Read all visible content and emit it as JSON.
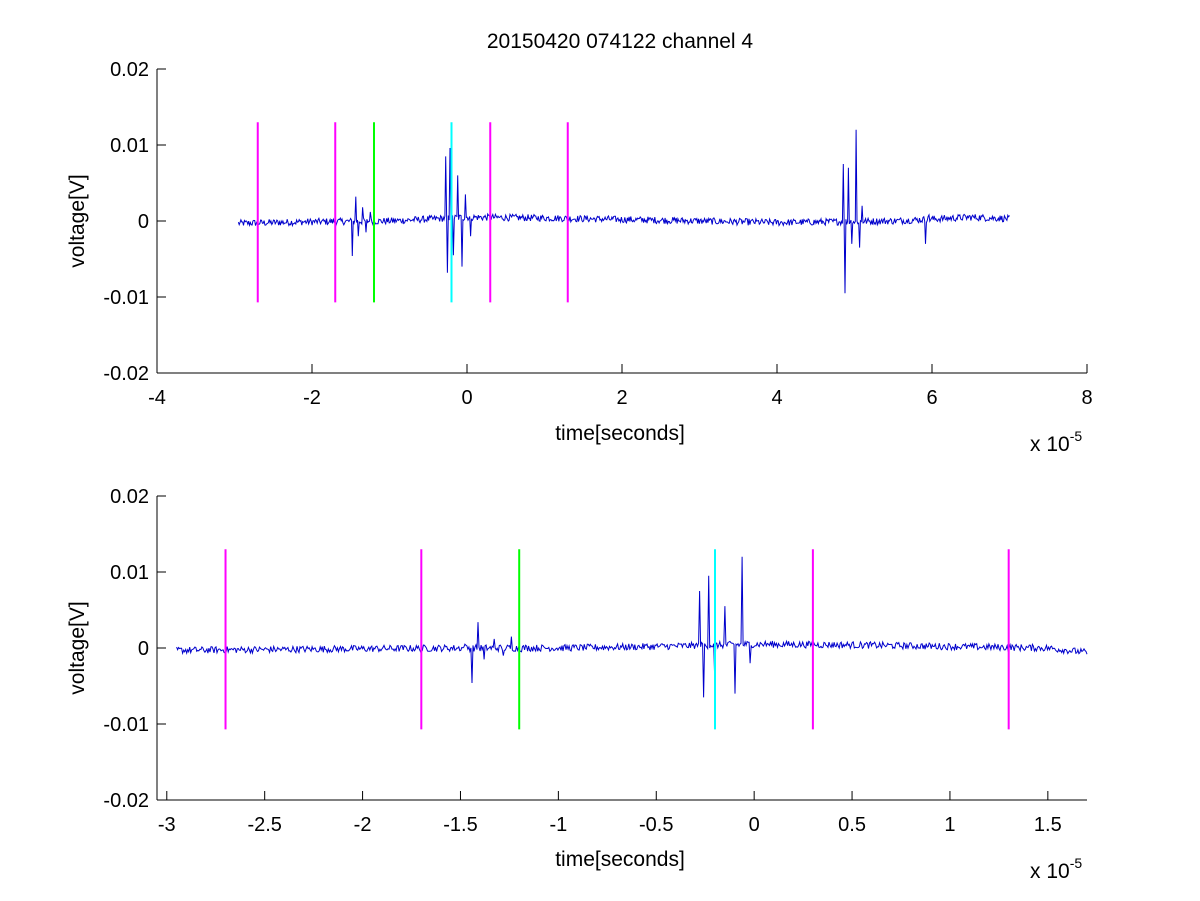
{
  "chart_data": [
    {
      "type": "line",
      "title": "20150420 074122 channel 4",
      "xlabel": "time[seconds]",
      "ylabel": "voltage[V]",
      "x_multiplier_label": "x 10",
      "x_multiplier_exponent": "-5",
      "xlim": [
        -4,
        8
      ],
      "ylim": [
        -0.02,
        0.02
      ],
      "xticks": [
        -4,
        -2,
        0,
        2,
        4,
        6,
        8
      ],
      "xtick_labels": [
        "-4",
        "-2",
        "0",
        "2",
        "4",
        "6",
        "8"
      ],
      "yticks": [
        -0.02,
        -0.01,
        0,
        0.01,
        0.02
      ],
      "ytick_labels": [
        "-0.02",
        "-0.01",
        "0",
        "0.01",
        "0.02"
      ],
      "grid": false,
      "signal": {
        "color": "#0000cc",
        "x_range": [
          -2.95,
          7.0
        ],
        "baseline_points": [
          [
            -2.95,
            -0.0003
          ],
          [
            -2.0,
            -0.0001
          ],
          [
            -1.0,
            0.0
          ],
          [
            0.0,
            0.0005
          ],
          [
            1.0,
            0.0004
          ],
          [
            2.0,
            0.0002
          ],
          [
            3.0,
            0.0
          ],
          [
            4.0,
            -0.0002
          ],
          [
            5.5,
            0.0
          ],
          [
            6.5,
            0.0005
          ],
          [
            7.0,
            0.0003
          ]
        ],
        "bursts": [
          {
            "center": -1.35,
            "points": [
              [
                -1.48,
                -0.0046
              ],
              [
                -1.44,
                0.0032
              ],
              [
                -1.4,
                -0.002
              ],
              [
                -1.35,
                0.0018
              ],
              [
                -1.3,
                -0.0015
              ],
              [
                -1.25,
                0.0012
              ]
            ]
          },
          {
            "center": -0.2,
            "points": [
              [
                -0.28,
                0.0085
              ],
              [
                -0.25,
                -0.0068
              ],
              [
                -0.22,
                0.0096
              ],
              [
                -0.18,
                -0.0045
              ],
              [
                -0.12,
                0.006
              ],
              [
                -0.06,
                -0.006
              ],
              [
                -0.02,
                0.0035
              ],
              [
                0.05,
                -0.002
              ]
            ]
          },
          {
            "center": 4.95,
            "points": [
              [
                4.85,
                0.0075
              ],
              [
                4.88,
                -0.0095
              ],
              [
                4.92,
                0.007
              ],
              [
                4.97,
                -0.003
              ],
              [
                5.02,
                0.012
              ],
              [
                5.06,
                -0.0035
              ],
              [
                5.1,
                0.002
              ]
            ]
          },
          {
            "center": 5.95,
            "points": [
              [
                5.92,
                -0.003
              ],
              [
                5.96,
                0.0008
              ]
            ]
          }
        ]
      },
      "markers": [
        {
          "x": -2.7,
          "color": "#ff00ff"
        },
        {
          "x": -1.7,
          "color": "#ff00ff"
        },
        {
          "x": -1.2,
          "color": "#00ff00"
        },
        {
          "x": -0.2,
          "color": "#00ffff"
        },
        {
          "x": 0.3,
          "color": "#ff00ff"
        },
        {
          "x": 1.3,
          "color": "#ff00ff"
        }
      ],
      "marker_y_range": [
        -0.0107,
        0.013
      ]
    },
    {
      "type": "line",
      "title": "",
      "xlabel": "time[seconds]",
      "ylabel": "voltage[V]",
      "x_multiplier_label": "x 10",
      "x_multiplier_exponent": "-5",
      "xlim": [
        -3.05,
        1.7
      ],
      "ylim": [
        -0.02,
        0.02
      ],
      "xticks": [
        -3,
        -2.5,
        -2,
        -1.5,
        -1,
        -0.5,
        0,
        0.5,
        1,
        1.5
      ],
      "xtick_labels": [
        "-3",
        "-2.5",
        "-2",
        "-1.5",
        "-1",
        "-0.5",
        "0",
        "0.5",
        "1",
        "1.5"
      ],
      "yticks": [
        -0.02,
        -0.01,
        0,
        0.01,
        0.02
      ],
      "ytick_labels": [
        "-0.02",
        "-0.01",
        "0",
        "0.01",
        "0.02"
      ],
      "grid": false,
      "signal": {
        "color": "#0000cc",
        "x_range": [
          -2.95,
          1.7
        ],
        "baseline_points": [
          [
            -2.95,
            -0.0003
          ],
          [
            -2.5,
            -0.0002
          ],
          [
            -2.0,
            -0.0001
          ],
          [
            -1.5,
            0.0
          ],
          [
            -1.0,
            0.0
          ],
          [
            -0.5,
            0.0002
          ],
          [
            0.0,
            0.0005
          ],
          [
            0.5,
            0.0004
          ],
          [
            1.0,
            0.0002
          ],
          [
            1.5,
            0.0
          ],
          [
            1.7,
            -0.0006
          ]
        ],
        "bursts": [
          {
            "center": -1.35,
            "points": [
              [
                -1.48,
                0.0005
              ],
              [
                -1.44,
                -0.0046
              ],
              [
                -1.41,
                0.0034
              ],
              [
                -1.38,
                -0.0015
              ],
              [
                -1.33,
                0.0012
              ],
              [
                -1.28,
                -0.001
              ],
              [
                -1.24,
                0.0015
              ],
              [
                -1.19,
                -0.0005
              ]
            ]
          },
          {
            "center": -0.2,
            "points": [
              [
                -0.28,
                0.0075
              ],
              [
                -0.26,
                -0.0065
              ],
              [
                -0.23,
                0.0095
              ],
              [
                -0.2,
                -0.004
              ],
              [
                -0.15,
                0.0055
              ],
              [
                -0.1,
                -0.006
              ],
              [
                -0.06,
                0.012
              ],
              [
                -0.02,
                -0.002
              ],
              [
                0.05,
                0.0005
              ]
            ]
          }
        ]
      },
      "markers": [
        {
          "x": -2.7,
          "color": "#ff00ff"
        },
        {
          "x": -1.7,
          "color": "#ff00ff"
        },
        {
          "x": -1.2,
          "color": "#00ff00"
        },
        {
          "x": -0.2,
          "color": "#00ffff"
        },
        {
          "x": 0.3,
          "color": "#ff00ff"
        },
        {
          "x": 1.3,
          "color": "#ff00ff"
        }
      ],
      "marker_y_range": [
        -0.0107,
        0.013
      ]
    }
  ]
}
